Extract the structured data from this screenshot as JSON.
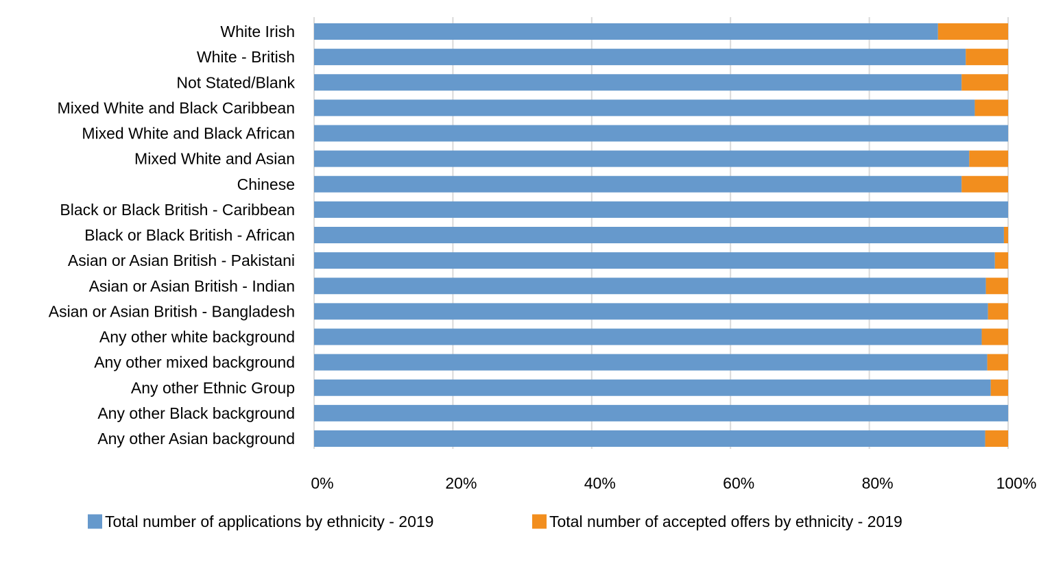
{
  "chart_data": {
    "type": "bar",
    "orientation": "horizontal",
    "stacked": "percent",
    "categories": [
      "White Irish",
      "White - British",
      "Not Stated/Blank",
      "Mixed White and Black Caribbean",
      "Mixed White and Black African",
      "Mixed White and Asian",
      "Chinese",
      "Black or Black British - Caribbean",
      "Black or Black British - African",
      "Asian or Asian British - Pakistani",
      "Asian or Asian British - Indian",
      "Asian or Asian British - Bangladesh",
      "Any other white background",
      "Any other mixed background",
      "Any other Ethnic Group",
      "Any other Black background",
      "Any other Asian background"
    ],
    "series": [
      {
        "name": "Total number of applications by ethnicity - 2019",
        "color": "#6699CC",
        "values": [
          89.9,
          93.9,
          93.3,
          95.2,
          100,
          94.4,
          93.3,
          100,
          99.4,
          98.1,
          96.8,
          97.1,
          96.2,
          97.0,
          97.5,
          100,
          96.7
        ]
      },
      {
        "name": "Total number of accepted offers by ethnicity - 2019",
        "color": "#F28E1E",
        "values": [
          10.1,
          6.1,
          6.7,
          4.8,
          0,
          5.6,
          6.7,
          0,
          0.6,
          1.9,
          3.2,
          2.9,
          3.8,
          3.0,
          2.5,
          0,
          3.3
        ]
      }
    ],
    "xaxis": {
      "ticks": [
        "0%",
        "20%",
        "40%",
        "60%",
        "80%",
        "100%"
      ],
      "range": [
        0,
        100
      ],
      "unit": "%"
    },
    "grid": "vertical",
    "legend_position": "bottom",
    "title": "",
    "xlabel": "",
    "ylabel": ""
  }
}
